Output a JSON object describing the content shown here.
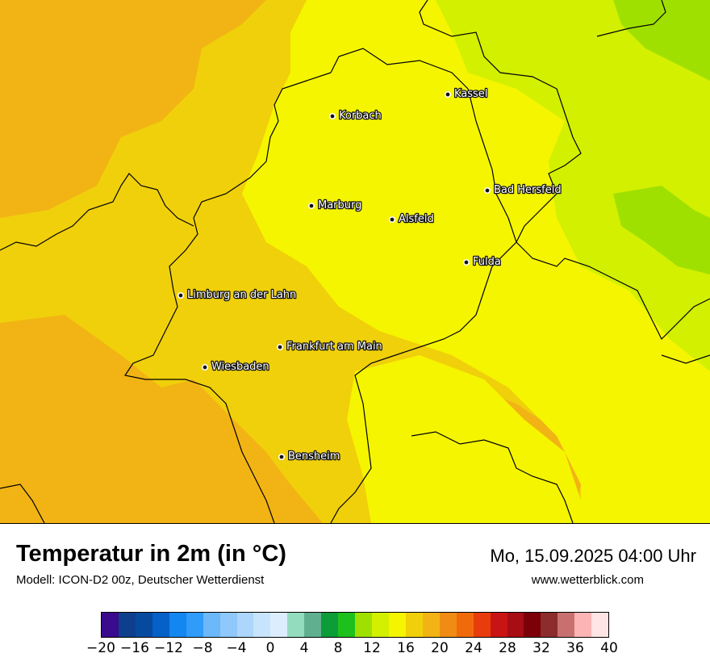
{
  "map": {
    "cities": [
      {
        "name": "Kassel"
      },
      {
        "name": "Korbach"
      },
      {
        "name": "Bad Hersfeld"
      },
      {
        "name": "Marburg"
      },
      {
        "name": "Alsfeld"
      },
      {
        "name": "Fulda"
      },
      {
        "name": "Limburg an der Lahn"
      },
      {
        "name": "Frankfurt am Main"
      },
      {
        "name": "Wiesbaden"
      },
      {
        "name": "Bensheim"
      }
    ],
    "colors": {
      "orange": "#f2b414",
      "gold": "#f0d00a",
      "yellow": "#f5f500",
      "yellow_green": "#d2f000",
      "green": "#a0e000",
      "border": "#000000"
    }
  },
  "header": {
    "title": "Temperatur in 2m (in °C)",
    "subtitle": "Modell: ICON-D2 00z, Deutscher Wetterdienst",
    "datetime": "Mo, 15.09.2025 04:00 Uhr",
    "website": "www.wetterblick.com"
  },
  "legend": {
    "colors": [
      "#3a0b8c",
      "#0d3f8c",
      "#064aa0",
      "#0560c8",
      "#1486f0",
      "#2e9cf8",
      "#6cb8f8",
      "#8fc8fa",
      "#acd6fc",
      "#c8e4fc",
      "#dceefe",
      "#94dcbe",
      "#60b090",
      "#0c9c38",
      "#1ec01c",
      "#a0e000",
      "#d2f000",
      "#f5f500",
      "#f0d00a",
      "#f2b414",
      "#f08c14",
      "#f06a0c",
      "#e83c0c",
      "#c81414",
      "#a80c14",
      "#7c0008",
      "#8c2c2c",
      "#c87070",
      "#fcb4b4",
      "#fee4e4"
    ],
    "ticks": [
      "−20",
      "−16",
      "−12",
      "−8",
      "−4",
      "0",
      "4",
      "8",
      "12",
      "16",
      "20",
      "24",
      "28",
      "32",
      "36",
      "40"
    ]
  }
}
